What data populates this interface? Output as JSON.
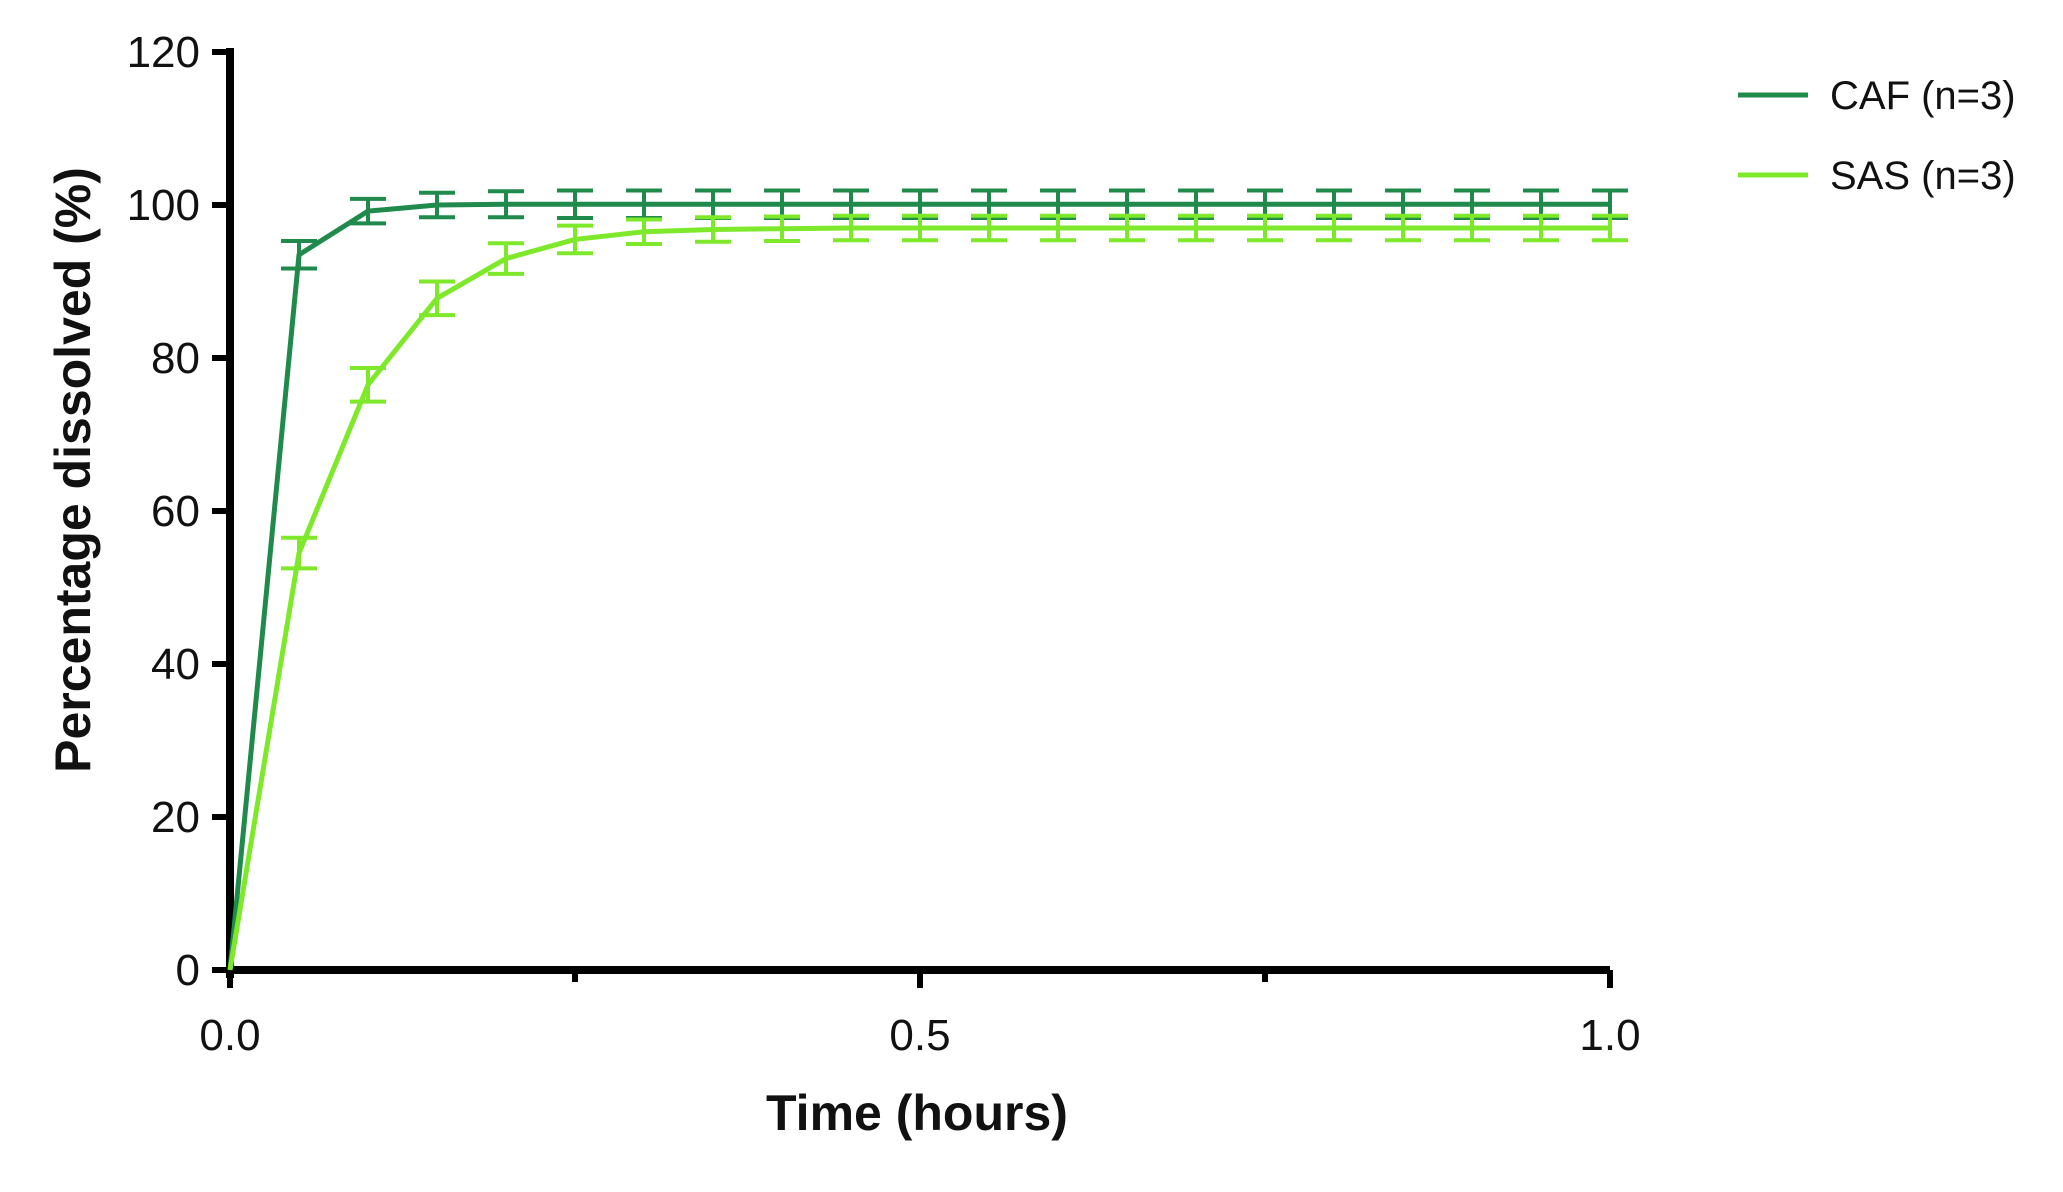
{
  "chart_data": {
    "type": "line",
    "title": "",
    "xlabel": "Time (hours)",
    "ylabel": "Percentage dissolved (%)",
    "xlim": [
      0,
      1.0
    ],
    "ylim": [
      0,
      120
    ],
    "x_ticks": [
      0.0,
      0.5,
      1.0
    ],
    "x_tick_labels": [
      "0.0",
      "0.5",
      "1.0"
    ],
    "x_minor_ticks": [
      0.25,
      0.75
    ],
    "y_ticks": [
      0,
      20,
      40,
      60,
      80,
      100,
      120
    ],
    "y_tick_labels": [
      "0",
      "20",
      "40",
      "60",
      "80",
      "100",
      "120"
    ],
    "grid": false,
    "legend_position": "top-right",
    "x": [
      0,
      0.05,
      0.1,
      0.15,
      0.2,
      0.25,
      0.3,
      0.35,
      0.4,
      0.45,
      0.5,
      0.55,
      0.6,
      0.65,
      0.7,
      0.75,
      0.8,
      0.85,
      0.9,
      0.95,
      1.0
    ],
    "series": [
      {
        "name": "CAF (n=3)",
        "color": "#1f8a4c",
        "values": [
          0,
          93.5,
          99.2,
          100.0,
          100.1,
          100.1,
          100.1,
          100.1,
          100.1,
          100.1,
          100.1,
          100.1,
          100.1,
          100.1,
          100.1,
          100.1,
          100.1,
          100.1,
          100.1,
          100.1,
          100.1
        ],
        "error": [
          0,
          1.8,
          1.6,
          1.6,
          1.7,
          1.8,
          1.8,
          1.8,
          1.8,
          1.8,
          1.8,
          1.8,
          1.8,
          1.8,
          1.8,
          1.8,
          1.8,
          1.8,
          1.8,
          1.8,
          1.8
        ]
      },
      {
        "name": "SAS (n=3)",
        "color": "#7ee82a",
        "values": [
          0,
          54.5,
          76.5,
          87.8,
          93.0,
          95.5,
          96.5,
          96.8,
          96.9,
          97.0,
          97.0,
          97.0,
          97.0,
          97.0,
          97.0,
          97.0,
          97.0,
          97.0,
          97.0,
          97.0,
          97.0
        ],
        "error": [
          0,
          2.0,
          2.2,
          2.2,
          2.0,
          1.8,
          1.6,
          1.6,
          1.6,
          1.6,
          1.6,
          1.6,
          1.6,
          1.6,
          1.6,
          1.6,
          1.6,
          1.6,
          1.6,
          1.6,
          1.6
        ]
      }
    ]
  }
}
